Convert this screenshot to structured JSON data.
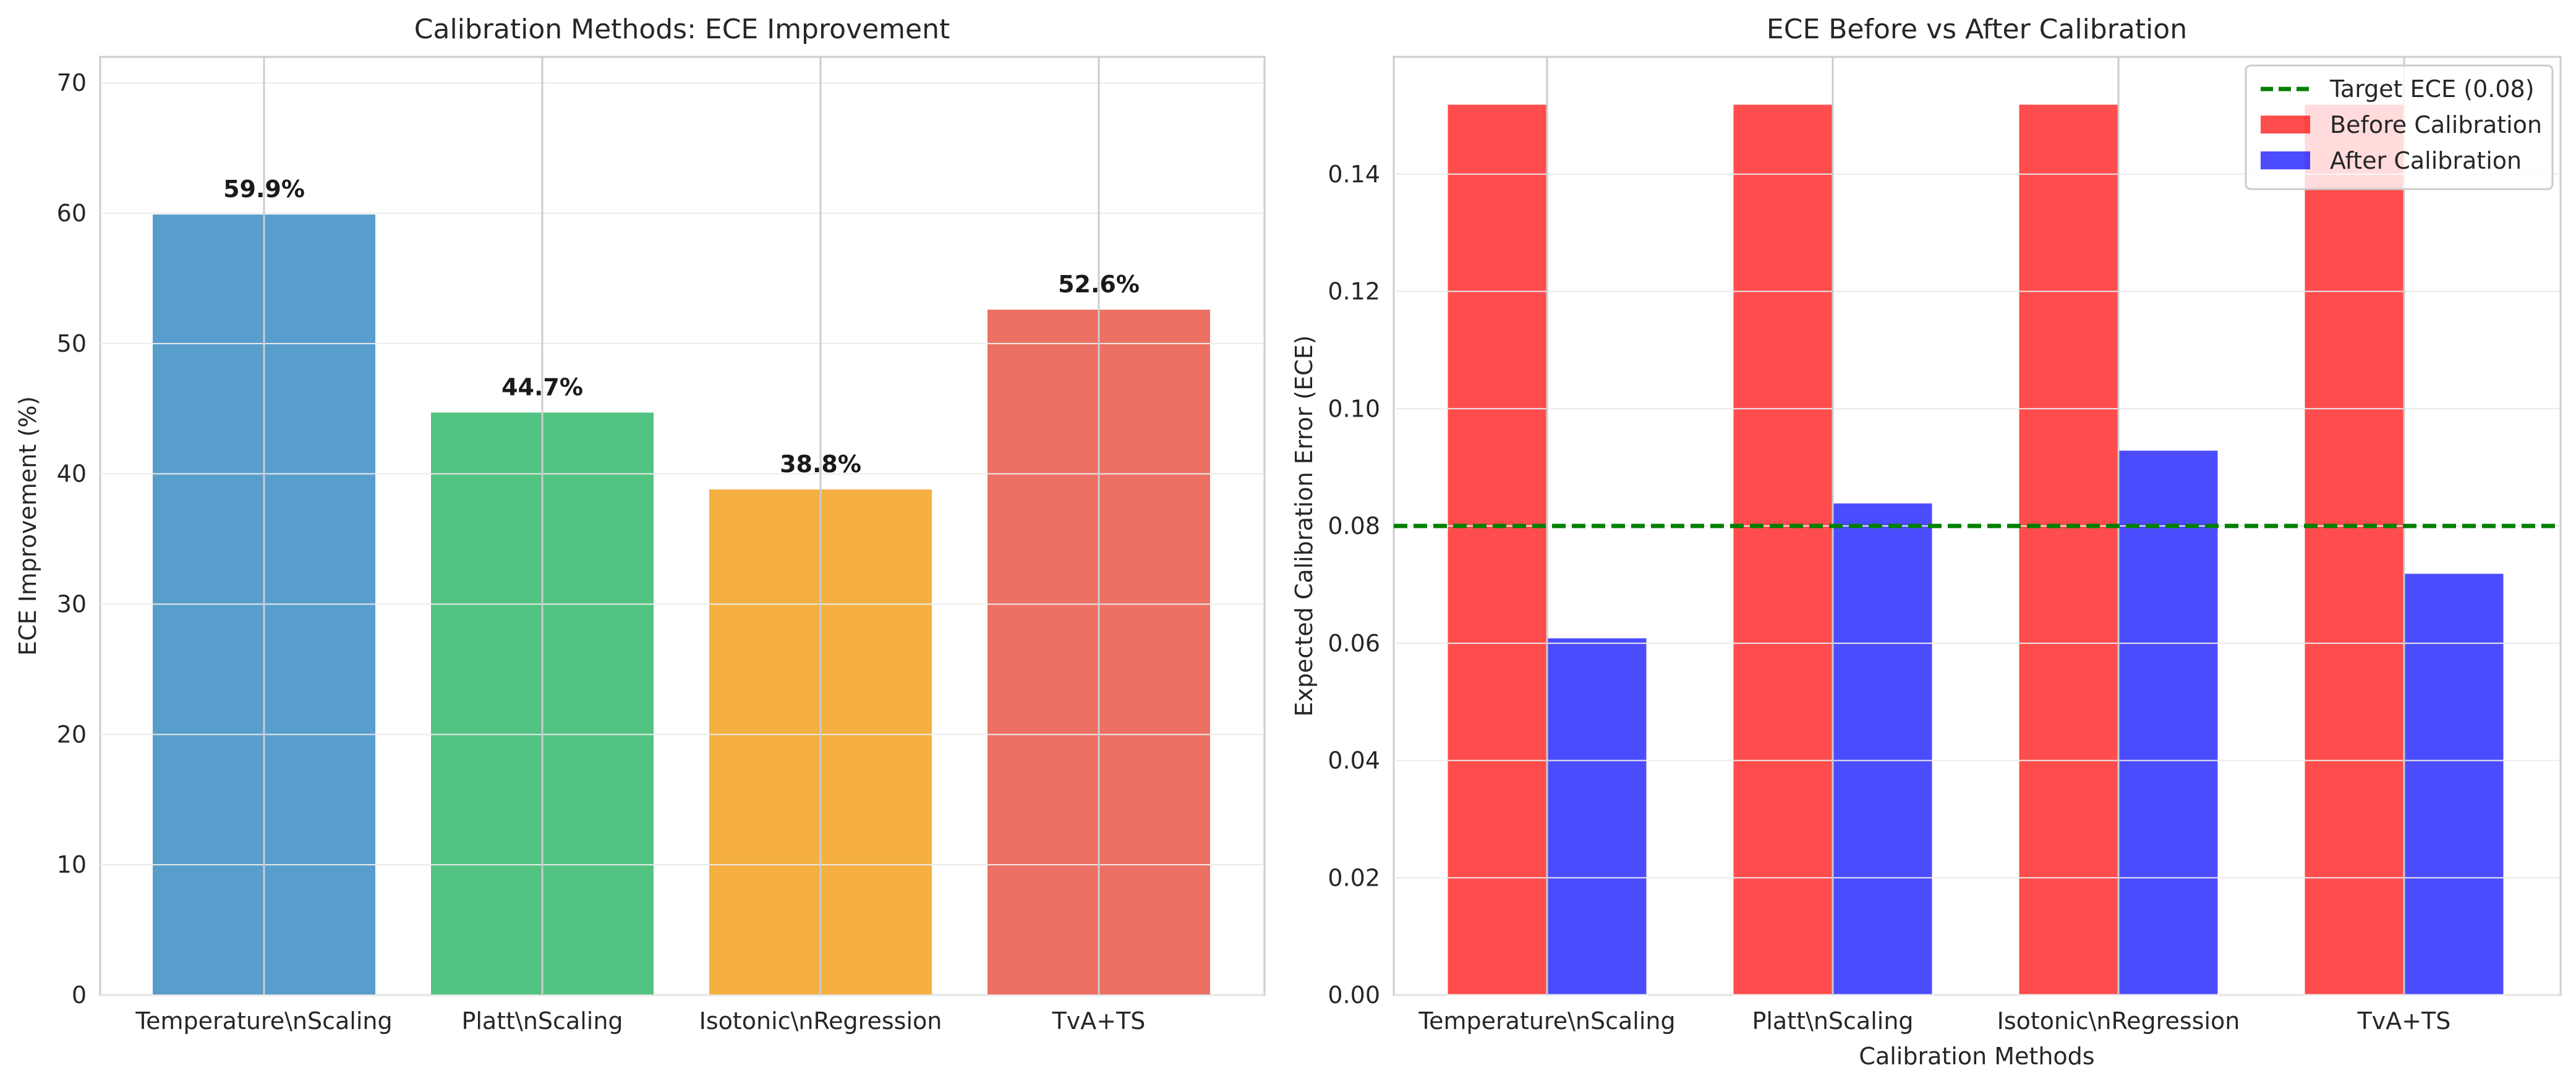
{
  "chart_data": [
    {
      "type": "bar",
      "title": "Calibration Methods: ECE Improvement",
      "xlabel": "",
      "ylabel": "ECE Improvement (%)",
      "categories": [
        "Temperature\\nScaling",
        "Platt\\nScaling",
        "Isotonic\\nRegression",
        "TvA+TS"
      ],
      "values": [
        59.9,
        44.7,
        38.8,
        52.6
      ],
      "data_labels": [
        "59.9%",
        "44.7%",
        "38.8%",
        "52.6%"
      ],
      "colors": [
        "#2E86C1",
        "#28B463",
        "#F39C12",
        "#E74C3C"
      ],
      "ylim": [
        0,
        72
      ],
      "yticks": [
        0,
        10,
        20,
        30,
        40,
        50,
        60,
        70
      ],
      "grid": true
    },
    {
      "type": "bar",
      "title": "ECE Before vs After Calibration",
      "xlabel": "Calibration Methods",
      "ylabel": "Expected Calibration Error (ECE)",
      "categories": [
        "Temperature\\nScaling",
        "Platt\\nScaling",
        "Isotonic\\nRegression",
        "TvA+TS"
      ],
      "series": [
        {
          "name": "Before Calibration",
          "color": "#FF0000",
          "values": [
            0.152,
            0.152,
            0.152,
            0.152
          ]
        },
        {
          "name": "After Calibration",
          "color": "#0000FF",
          "values": [
            0.061,
            0.084,
            0.093,
            0.072
          ]
        }
      ],
      "reference_line": {
        "name": "Target ECE (0.08)",
        "value": 0.08,
        "color": "#008000",
        "style": "dashed"
      },
      "ylim": [
        0,
        0.16
      ],
      "yticks": [
        "0.00",
        "0.02",
        "0.04",
        "0.06",
        "0.08",
        "0.10",
        "0.12",
        "0.14"
      ],
      "legend": "top-right",
      "grid": true
    }
  ]
}
